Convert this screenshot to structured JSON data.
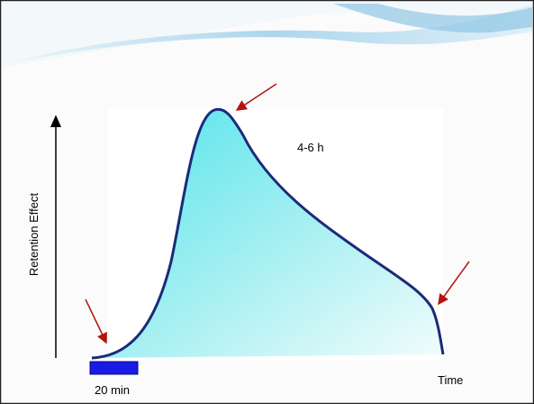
{
  "labels": {
    "y_axis": "Retention Effect",
    "x_axis": "Time",
    "duration": "4-6 h",
    "dose": "20 min"
  }
}
